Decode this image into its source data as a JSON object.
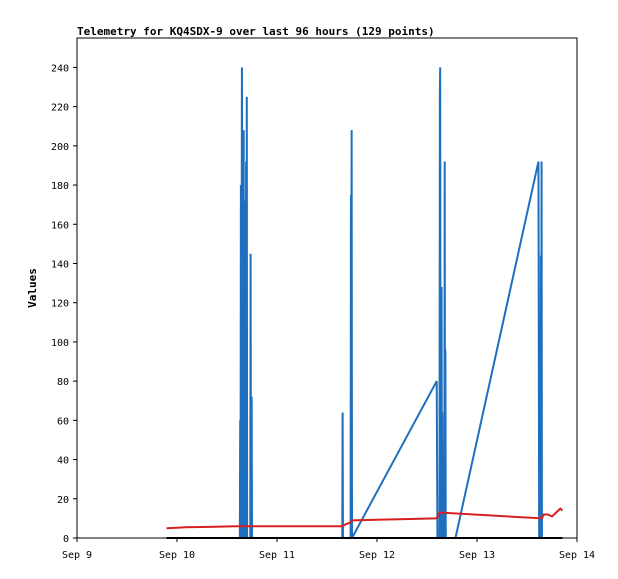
{
  "chart_data": {
    "type": "line",
    "title": "Telemetry for KQ4SDX-9 over last 96 hours (129 points)",
    "ylabel": "Values",
    "xlabel": "",
    "ylim": [
      0,
      255
    ],
    "xlim": [
      "2024-09-09T00:00",
      "2024-09-14T00:00"
    ],
    "yticks": [
      0,
      20,
      40,
      60,
      80,
      100,
      120,
      140,
      160,
      180,
      200,
      220,
      240
    ],
    "xticks": [
      {
        "label": "Sep 9",
        "t": "2024-09-09T00:00"
      },
      {
        "label": "Sep 10",
        "t": "2024-09-10T00:00"
      },
      {
        "label": "Sep 11",
        "t": "2024-09-11T00:00"
      },
      {
        "label": "Sep 12",
        "t": "2024-09-12T00:00"
      },
      {
        "label": "Sep 13",
        "t": "2024-09-13T00:00"
      },
      {
        "label": "Sep 14",
        "t": "2024-09-14T00:00"
      }
    ],
    "grid": false,
    "series": [
      {
        "color": "#1f6fbf",
        "points": [
          [
            "2024-09-10T15:05",
            0
          ],
          [
            "2024-09-10T15:10",
            60
          ],
          [
            "2024-09-10T15:15",
            0
          ],
          [
            "2024-09-10T15:20",
            180
          ],
          [
            "2024-09-10T15:25",
            0
          ],
          [
            "2024-09-10T15:35",
            240
          ],
          [
            "2024-09-10T15:45",
            0
          ],
          [
            "2024-09-10T15:50",
            155
          ],
          [
            "2024-09-10T15:55",
            50
          ],
          [
            "2024-09-10T16:00",
            208
          ],
          [
            "2024-09-10T16:05",
            0
          ],
          [
            "2024-09-10T16:10",
            172
          ],
          [
            "2024-09-10T16:15",
            100
          ],
          [
            "2024-09-10T16:20",
            0
          ],
          [
            "2024-09-10T16:25",
            35
          ],
          [
            "2024-09-10T16:30",
            0
          ],
          [
            "2024-09-10T16:35",
            192
          ],
          [
            "2024-09-10T16:40",
            0
          ],
          [
            "2024-09-10T16:45",
            225
          ],
          [
            "2024-09-10T16:50",
            0
          ],
          [
            "2024-09-10T17:35",
            0
          ],
          [
            "2024-09-10T17:40",
            145
          ],
          [
            "2024-09-10T17:45",
            0
          ],
          [
            "2024-09-10T17:55",
            72
          ],
          [
            "2024-09-10T18:00",
            0
          ],
          [
            "2024-09-11T15:40",
            0
          ],
          [
            "2024-09-11T15:45",
            64
          ],
          [
            "2024-09-11T15:50",
            0
          ],
          [
            "2024-09-11T17:40",
            0
          ],
          [
            "2024-09-11T17:45",
            175
          ],
          [
            "2024-09-11T17:50",
            120
          ],
          [
            "2024-09-11T17:55",
            208
          ],
          [
            "2024-09-11T18:00",
            0
          ],
          [
            "2024-09-12T14:20",
            80
          ],
          [
            "2024-09-12T14:25",
            40
          ],
          [
            "2024-09-12T14:30",
            0
          ],
          [
            "2024-09-12T15:00",
            0
          ],
          [
            "2024-09-12T15:05",
            225
          ],
          [
            "2024-09-12T15:10",
            240
          ],
          [
            "2024-09-12T15:15",
            40
          ],
          [
            "2024-09-12T15:20",
            112
          ],
          [
            "2024-09-12T15:25",
            0
          ],
          [
            "2024-09-12T15:30",
            128
          ],
          [
            "2024-09-12T15:35",
            0
          ],
          [
            "2024-09-12T15:40",
            64
          ],
          [
            "2024-09-12T15:45",
            0
          ],
          [
            "2024-09-12T16:10",
            0
          ],
          [
            "2024-09-12T16:15",
            192
          ],
          [
            "2024-09-12T16:20",
            0
          ],
          [
            "2024-09-12T16:25",
            96
          ],
          [
            "2024-09-12T16:30",
            0
          ],
          [
            "2024-09-12T18:50",
            0
          ],
          [
            "2024-09-13T14:45",
            192
          ],
          [
            "2024-09-13T14:50",
            96
          ],
          [
            "2024-09-13T14:55",
            0
          ],
          [
            "2024-09-13T15:00",
            80
          ],
          [
            "2024-09-13T15:05",
            40
          ],
          [
            "2024-09-13T15:10",
            112
          ],
          [
            "2024-09-13T15:15",
            0
          ],
          [
            "2024-09-13T15:20",
            144
          ],
          [
            "2024-09-13T15:25",
            40
          ],
          [
            "2024-09-13T15:30",
            192
          ],
          [
            "2024-09-13T15:35",
            0
          ]
        ]
      },
      {
        "color": "#d62020",
        "points": [
          [
            "2024-09-09T21:30",
            5
          ],
          [
            "2024-09-10T00:00",
            5.2
          ],
          [
            "2024-09-10T02:00",
            5.5
          ],
          [
            "2024-09-10T08:00",
            5.7
          ],
          [
            "2024-09-10T14:00",
            6
          ],
          [
            "2024-09-10T20:00",
            6
          ],
          [
            "2024-09-11T06:00",
            6
          ],
          [
            "2024-09-11T15:40",
            6
          ],
          [
            "2024-09-11T16:30",
            7
          ],
          [
            "2024-09-11T17:40",
            8
          ],
          [
            "2024-09-11T18:00",
            9
          ],
          [
            "2024-09-12T00:00",
            9.3
          ],
          [
            "2024-09-12T08:00",
            9.7
          ],
          [
            "2024-09-12T14:00",
            10
          ],
          [
            "2024-09-12T14:30",
            10.5
          ],
          [
            "2024-09-12T15:00",
            13
          ],
          [
            "2024-09-13T15:35",
            10
          ],
          [
            "2024-09-13T16:00",
            12
          ],
          [
            "2024-09-13T17:00",
            12
          ],
          [
            "2024-09-13T18:00",
            11
          ],
          [
            "2024-09-13T19:00",
            13
          ],
          [
            "2024-09-13T20:00",
            15
          ],
          [
            "2024-09-13T20:30",
            14
          ]
        ]
      },
      {
        "color": "#000000",
        "points": [
          [
            "2024-09-09T21:30",
            0
          ],
          [
            "2024-09-13T20:30",
            0
          ]
        ]
      }
    ]
  }
}
